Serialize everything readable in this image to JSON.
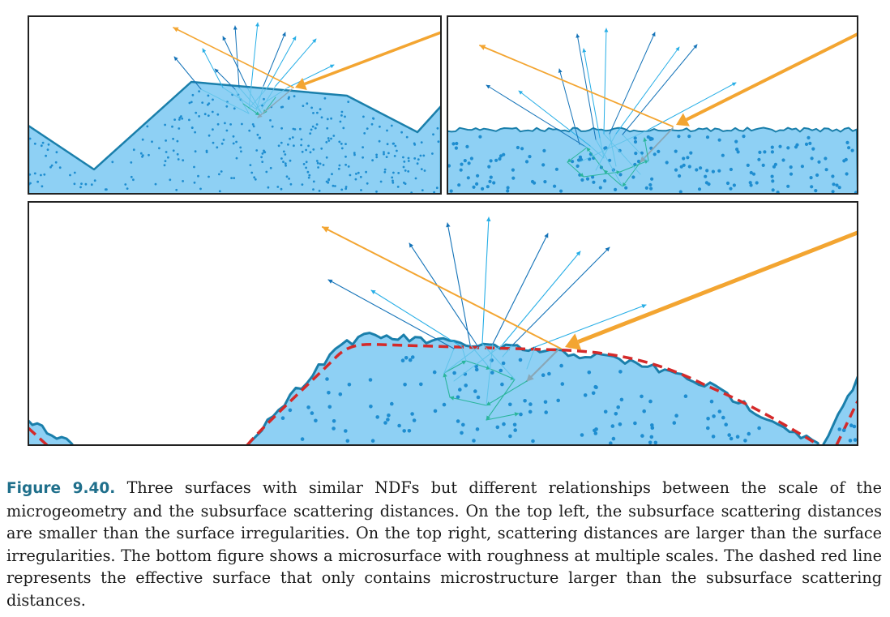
{
  "figure": {
    "label": "Figure 9.40.",
    "caption": "Three surfaces with similar NDFs but different relationships between the scale of the microgeometry and the subsurface scattering distances. On the top left, the subsurface scattering distances are smaller than the surface irregularities. On the top right, scattering distances are larger than the surface irregularities. The bottom figure shows a microsurface with roughness at multiple scales. The dashed red line represents the effective surface that only contains microstructure larger than the subsurface scattering distances."
  },
  "panels": [
    {
      "id": "top-left"
    },
    {
      "id": "top-right"
    },
    {
      "id": "bottom"
    }
  ],
  "colors": {
    "material_fill": "#8ed0f4",
    "surface_stroke": "#1a7fab",
    "dots": "#1e8dd0",
    "incident_light": "#f3a531",
    "specular_reflection": "#f3a531",
    "exit_ray_dark": "#1473b8",
    "exit_ray_light": "#27aee6",
    "internal_ray": "#2ab59c",
    "effective_surface": "#d42a2a",
    "frame": "#222222"
  }
}
